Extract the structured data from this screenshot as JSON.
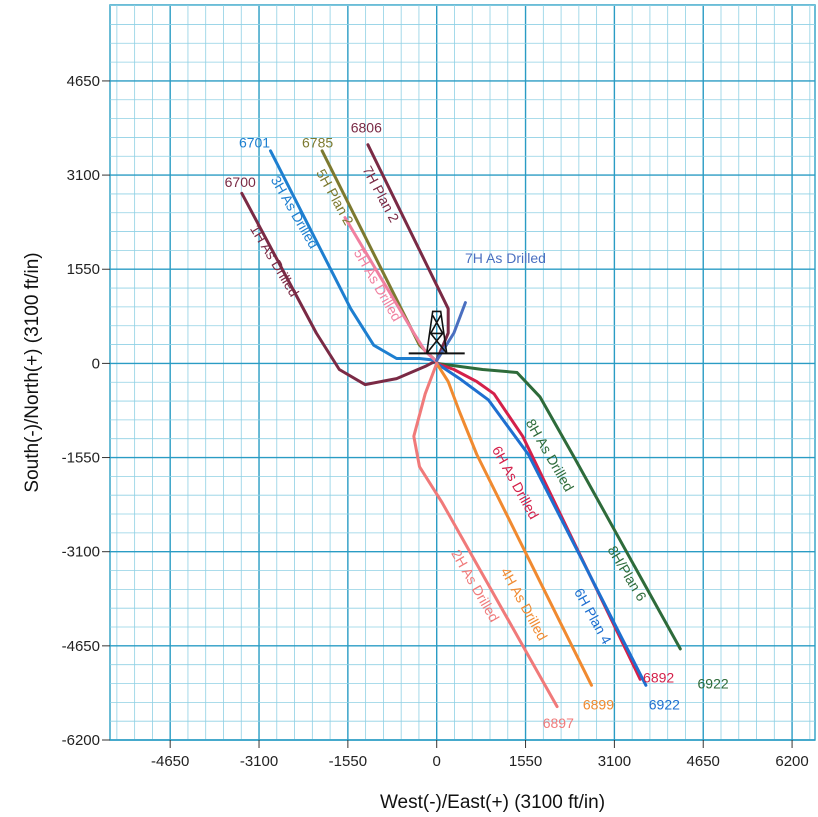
{
  "chart_data": {
    "type": "line",
    "xlabel": "West(-)/East(+) (3100 ft/in)",
    "ylabel": "South(-)/North(+) (3100 ft/in)",
    "xlim": [
      -5700,
      6600
    ],
    "ylim": [
      -6200,
      5900
    ],
    "xticks": [
      -4650,
      -3100,
      -1550,
      0,
      1550,
      3100,
      4650,
      6200
    ],
    "yticks": [
      4650,
      3100,
      1550,
      0,
      -1550,
      -3100,
      -4650,
      -6200
    ],
    "grid": true,
    "series": [
      {
        "name": "1H As Drilled",
        "color": "#7a2a45",
        "points": [
          [
            0,
            50
          ],
          [
            -200,
            -50
          ],
          [
            -700,
            -250
          ],
          [
            -1250,
            -350
          ],
          [
            -1700,
            -100
          ],
          [
            -2100,
            500
          ],
          [
            -3400,
            2800
          ]
        ],
        "label_pos": [
          -2900,
          1650
        ],
        "label_angle": 59,
        "end_label": "6700",
        "end_label_pos": [
          -3700,
          2900
        ]
      },
      {
        "name": "3H As Drilled",
        "color": "#1e7fd0",
        "points": [
          [
            0,
            50
          ],
          [
            -300,
            80
          ],
          [
            -700,
            80
          ],
          [
            -1100,
            300
          ],
          [
            -1500,
            900
          ],
          [
            -2900,
            3500
          ]
        ],
        "label_pos": [
          -2550,
          2450
        ],
        "label_angle": 60,
        "end_label": "6701",
        "end_label_pos": [
          -3450,
          3550
        ]
      },
      {
        "name": "5H Plan 2",
        "color": "#7d7a30",
        "points": [
          [
            0,
            30
          ],
          [
            -300,
            300
          ],
          [
            -2000,
            3500
          ]
        ],
        "label_pos": [
          -1850,
          2700
        ],
        "label_angle": 61,
        "end_label": "6785",
        "end_label_pos": [
          -2350,
          3550
        ]
      },
      {
        "name": "5H As Drilled",
        "color": "#f080a0",
        "points": [
          [
            0,
            30
          ],
          [
            -200,
            200
          ],
          [
            -400,
            500
          ],
          [
            -1600,
            2400
          ]
        ],
        "label_pos": [
          -1100,
          1250
        ],
        "label_angle": 60,
        "end_label": "",
        "end_label_pos": [
          0,
          0
        ]
      },
      {
        "name": "7H Plan 2",
        "color": "#7a2a45",
        "points": [
          [
            0,
            50
          ],
          [
            200,
            500
          ],
          [
            200,
            900
          ],
          [
            -1200,
            3600
          ]
        ],
        "label_pos": [
          -1050,
          2750
        ],
        "label_angle": 62,
        "end_label": "6806",
        "end_label_pos": [
          -1500,
          3800
        ]
      },
      {
        "name": "7H As Drilled",
        "color": "#4a6fc0",
        "points": [
          [
            0,
            50
          ],
          [
            300,
            500
          ],
          [
            500,
            1000
          ]
        ],
        "label_pos": [
          1200,
          1650
        ],
        "label_angle": 0,
        "end_label": "",
        "end_label_pos": [
          0,
          0
        ]
      },
      {
        "name": "8H As Drilled",
        "color": "#2e6b3a",
        "points": [
          [
            0,
            0
          ],
          [
            800,
            -100
          ],
          [
            1400,
            -150
          ],
          [
            1800,
            -550
          ],
          [
            2400,
            -1550
          ],
          [
            4250,
            -4700
          ]
        ],
        "label_pos": [
          1900,
          -1550
        ],
        "label_angle": 60,
        "end_label": "6922",
        "end_label_pos": [
          4550,
          -5350
        ]
      },
      {
        "name": "8H/Plan 6",
        "color": "#2e6b3a",
        "points": [],
        "label_pos": [
          3250,
          -3500
        ],
        "label_angle": 59,
        "end_label": "",
        "end_label_pos": [
          0,
          0
        ]
      },
      {
        "name": "6H As Drilled",
        "color": "#d4204a",
        "points": [
          [
            0,
            0
          ],
          [
            300,
            -100
          ],
          [
            700,
            -300
          ],
          [
            1000,
            -500
          ],
          [
            1500,
            -1200
          ],
          [
            3550,
            -5200
          ]
        ],
        "label_pos": [
          1300,
          -2000
        ],
        "label_angle": 61,
        "end_label": "6892",
        "end_label_pos": [
          3600,
          -5250
        ]
      },
      {
        "name": "6H Plan 4",
        "color": "#1e6fd0",
        "points": [
          [
            0,
            0
          ],
          [
            400,
            -250
          ],
          [
            900,
            -600
          ],
          [
            1600,
            -1500
          ],
          [
            3650,
            -5300
          ]
        ],
        "label_pos": [
          2650,
          -4200
        ],
        "label_angle": 61,
        "end_label": "6922",
        "end_label_pos": [
          3700,
          -5700
        ]
      },
      {
        "name": "4H As Drilled",
        "color": "#f08a30",
        "points": [
          [
            0,
            0
          ],
          [
            200,
            -300
          ],
          [
            400,
            -800
          ],
          [
            700,
            -1500
          ],
          [
            2700,
            -5300
          ]
        ],
        "label_pos": [
          1450,
          -4000
        ],
        "label_angle": 61,
        "end_label": "6899",
        "end_label_pos": [
          2550,
          -5700
        ]
      },
      {
        "name": "2H As Drilled",
        "color": "#f07a7a",
        "points": [
          [
            0,
            0
          ],
          [
            -200,
            -500
          ],
          [
            -400,
            -1200
          ],
          [
            -300,
            -1700
          ],
          [
            100,
            -2300
          ],
          [
            2100,
            -5650
          ]
        ],
        "label_pos": [
          600,
          -3700
        ],
        "label_angle": 60,
        "end_label": "6897",
        "end_label_pos": [
          1850,
          -6000
        ]
      }
    ]
  }
}
